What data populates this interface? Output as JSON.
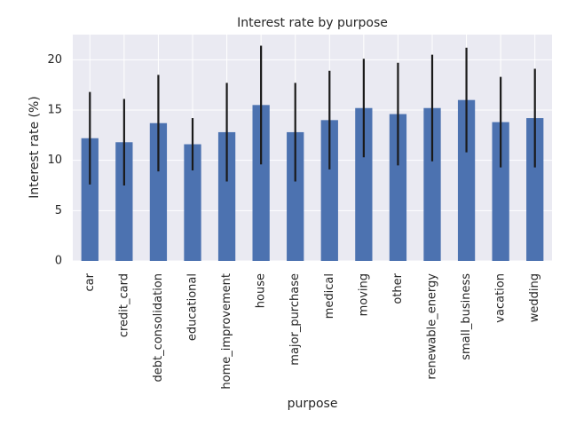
{
  "chart_data": {
    "type": "bar",
    "title": "Interest rate by purpose",
    "xlabel": "purpose",
    "ylabel": "Interest rate (%)",
    "ylim": [
      0,
      22.5
    ],
    "yticks": [
      0,
      5,
      10,
      15,
      20
    ],
    "grid": true,
    "bar_color": "#4c72b0",
    "errorbar_color": "#1a1a1a",
    "plot_background": "#eaeaf2",
    "grid_color": "#ffffff",
    "categories": [
      "car",
      "credit_card",
      "debt_consolidation",
      "educational",
      "home_improvement",
      "house",
      "major_purchase",
      "medical",
      "moving",
      "other",
      "renewable_energy",
      "small_business",
      "vacation",
      "wedding"
    ],
    "values": [
      12.2,
      11.8,
      13.7,
      11.6,
      12.8,
      15.5,
      12.8,
      14.0,
      15.2,
      14.6,
      15.2,
      16.0,
      13.8,
      14.2
    ],
    "error": [
      4.6,
      4.3,
      4.8,
      2.6,
      4.9,
      5.9,
      4.9,
      4.9,
      4.9,
      5.1,
      5.3,
      5.2,
      4.5,
      4.9
    ]
  }
}
